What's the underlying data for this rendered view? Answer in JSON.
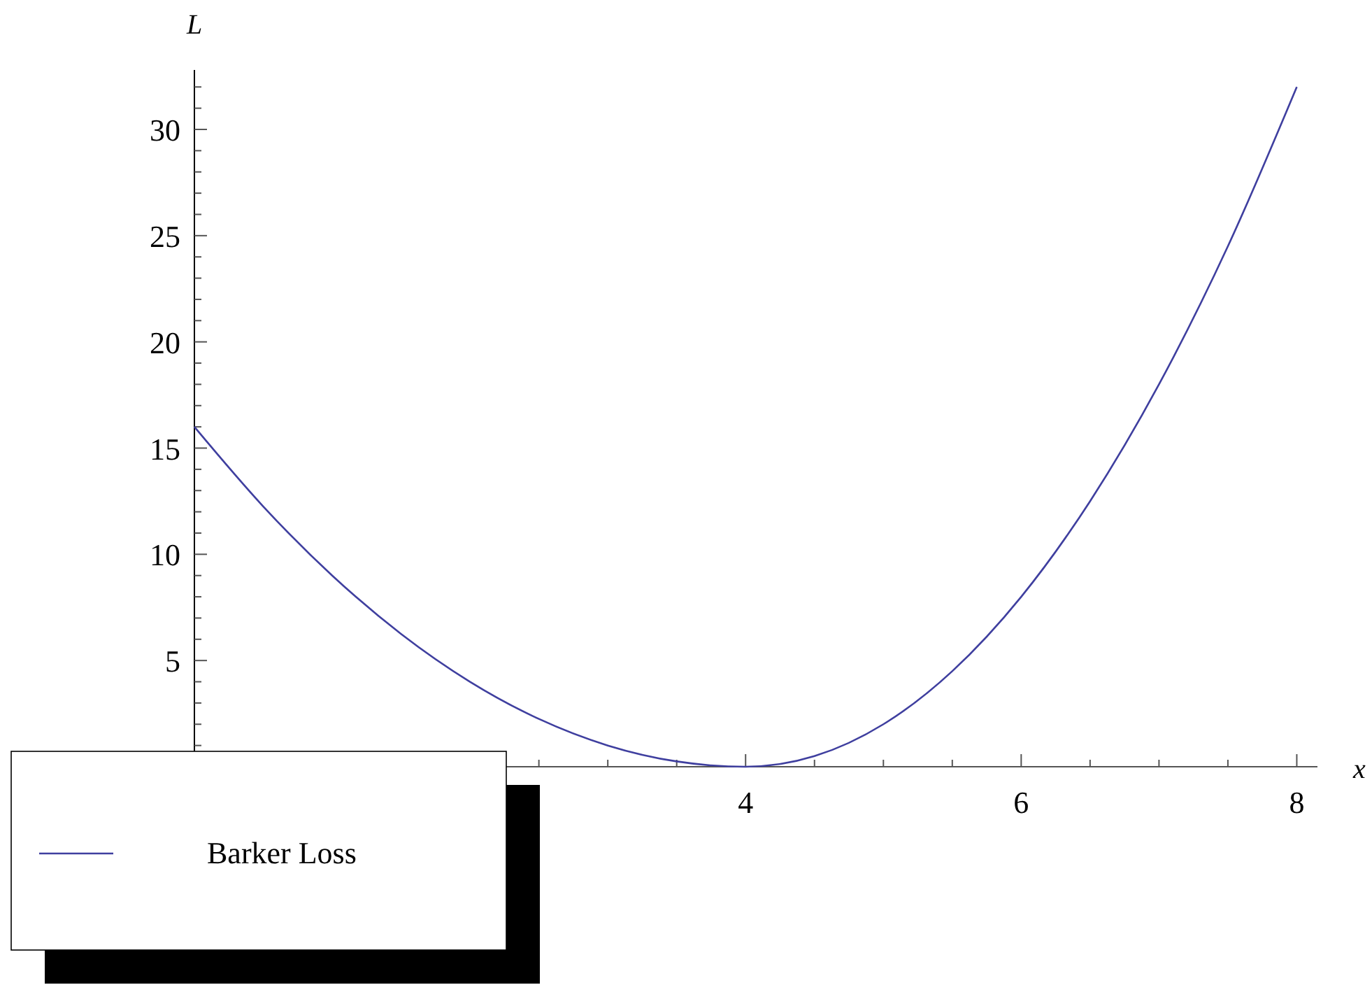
{
  "chart_data": {
    "type": "line",
    "xlabel": "x",
    "ylabel": "L",
    "x": [
      0,
      0.5,
      1,
      1.5,
      2,
      2.5,
      3,
      3.5,
      4,
      4.5,
      5,
      5.5,
      6,
      6.5,
      7,
      7.5,
      8
    ],
    "series": [
      {
        "name": "Barker Loss",
        "color": "#3f3f9f",
        "values": [
          16,
          12.25,
          9,
          6.25,
          4,
          2.25,
          1,
          0.25,
          0,
          0.5,
          2,
          4.5,
          8,
          12.5,
          18,
          24.5,
          32
        ]
      }
    ],
    "xlim": [
      0,
      8.15
    ],
    "ylim": [
      0,
      32.8
    ],
    "xticks": [
      {
        "value": 2.5,
        "label": null
      },
      {
        "value": 3,
        "label": null
      },
      {
        "value": 3.5,
        "label": null
      },
      4,
      {
        "value": 4.5,
        "label": null
      },
      {
        "value": 5,
        "label": null
      },
      {
        "value": 5.5,
        "label": null
      },
      6,
      {
        "value": 6.5,
        "label": null
      },
      {
        "value": 7,
        "label": null
      },
      {
        "value": 7.5,
        "label": null
      },
      8
    ],
    "yticks": [
      {
        "value": 1,
        "label": null
      },
      {
        "value": 2,
        "label": null
      },
      {
        "value": 3,
        "label": null
      },
      {
        "value": 4,
        "label": null
      },
      5,
      {
        "value": 6,
        "label": null
      },
      {
        "value": 7,
        "label": null
      },
      {
        "value": 8,
        "label": null
      },
      {
        "value": 9,
        "label": null
      },
      10,
      {
        "value": 11,
        "label": null
      },
      {
        "value": 12,
        "label": null
      },
      {
        "value": 13,
        "label": null
      },
      {
        "value": 14,
        "label": null
      },
      15,
      {
        "value": 16,
        "label": null
      },
      {
        "value": 17,
        "label": null
      },
      {
        "value": 18,
        "label": null
      },
      {
        "value": 19,
        "label": null
      },
      20,
      {
        "value": 21,
        "label": null
      },
      {
        "value": 22,
        "label": null
      },
      {
        "value": 23,
        "label": null
      },
      {
        "value": 24,
        "label": null
      },
      25,
      {
        "value": 26,
        "label": null
      },
      {
        "value": 27,
        "label": null
      },
      {
        "value": 28,
        "label": null
      },
      {
        "value": 29,
        "label": null
      },
      30,
      {
        "value": 31,
        "label": null
      },
      {
        "value": 32,
        "label": null
      }
    ],
    "legend": "bottom left",
    "grid": false,
    "marker": "none",
    "line_style": "solid"
  }
}
